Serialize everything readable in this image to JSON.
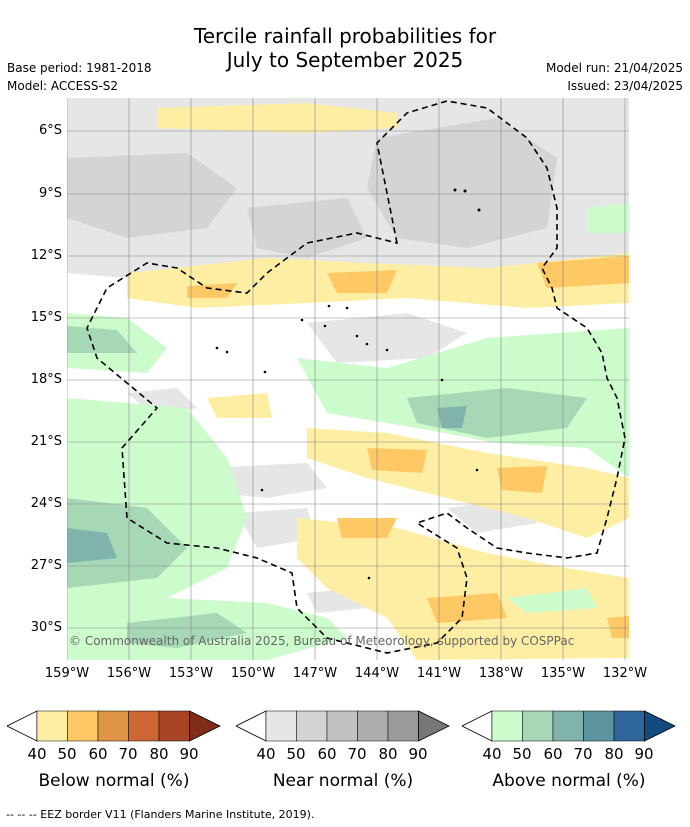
{
  "title_line1": "Tercile rainfall probabilities for",
  "title_line2": "July to September 2025",
  "meta": {
    "base_period": "Base period: 1981-2018",
    "model": "Model: ACCESS-S2",
    "model_run": "Model run: 21/04/2025",
    "issued": "Issued: 23/04/2025"
  },
  "map": {
    "lat_labels": [
      "6°S",
      "9°S",
      "12°S",
      "15°S",
      "18°S",
      "21°S",
      "24°S",
      "27°S",
      "30°S"
    ],
    "lon_labels": [
      "159°W",
      "156°W",
      "153°W",
      "150°W",
      "147°W",
      "144°W",
      "141°W",
      "138°W",
      "135°W",
      "132°W"
    ],
    "copyright": "© Commonwealth of Australia 2025, Bureau of Meteorology, supported by COSPPac",
    "footnote": "--  --  -- EEZ border V11 (Flanders Marine Institute, 2019)."
  },
  "legends": [
    {
      "title": "Below normal (%)",
      "ticks": [
        "40",
        "50",
        "60",
        "70",
        "80",
        "90"
      ],
      "colors": [
        "#fdeea3",
        "#fec864",
        "#e09446",
        "#cc6634",
        "#a94526",
        "#7f2d19"
      ]
    },
    {
      "title": "Near normal (%)",
      "ticks": [
        "40",
        "50",
        "60",
        "70",
        "80",
        "90"
      ],
      "colors": [
        "#e6e6e6",
        "#d4d4d4",
        "#c2c2c2",
        "#adadad",
        "#9a9a9a",
        "#777777"
      ]
    },
    {
      "title": "Above normal (%)",
      "ticks": [
        "40",
        "50",
        "60",
        "70",
        "80",
        "90"
      ],
      "colors": [
        "#ccfccc",
        "#a6d8b6",
        "#7fb3ac",
        "#5c95a0",
        "#2e6699",
        "#134b80"
      ]
    }
  ],
  "colors": {
    "below_40": "#fdeea3",
    "below_50": "#fec864",
    "near_40": "#e6e6e6",
    "near_50": "#d4d4d4",
    "above_40": "#ccfccc",
    "above_50": "#a6d8b6",
    "above_60": "#7fb3ac"
  }
}
